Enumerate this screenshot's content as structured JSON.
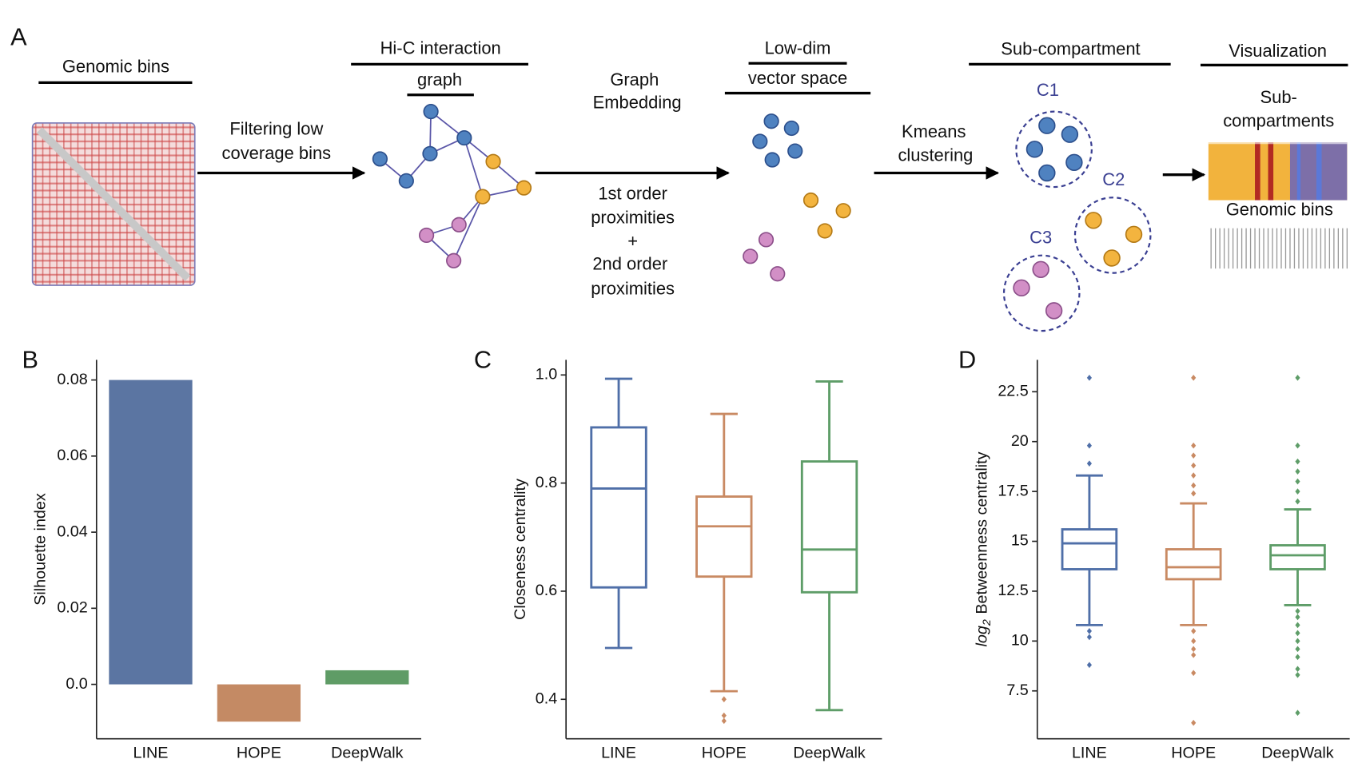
{
  "figure": {
    "panel_label": "A",
    "genomic_bins_title": "Genomic bins",
    "filter_label": [
      "Filtering low",
      "coverage bins"
    ],
    "hic_title": [
      "Hi-C interaction",
      "graph"
    ],
    "embedding_label": [
      "Graph",
      "Embedding"
    ],
    "proximities_label": [
      "1st order",
      "proximities",
      "+",
      "2nd order",
      "proximities"
    ],
    "lowdim_title": [
      "Low-dim",
      "vector space"
    ],
    "kmeans_label": [
      "Kmeans",
      "clustering"
    ],
    "subcompartment_title": "Sub-compartment",
    "clusters": [
      "C1",
      "C2",
      "C3"
    ],
    "visualization_title": "Visualization",
    "visualization_label": [
      "Sub-",
      "compartments"
    ],
    "visualization_bins": "Genomic bins"
  },
  "chart_data": [
    {
      "type": "bar",
      "panel_label": "B",
      "ylabel": "Silhouette index",
      "categories": [
        "LINE",
        "HOPE",
        "DeepWalk"
      ],
      "values": [
        0.08,
        -0.0098,
        0.0037
      ],
      "colors": [
        "#5b75a2",
        "#c48a64",
        "#5f9c66"
      ],
      "ylim": [
        -0.0143,
        0.0853
      ],
      "yticks": [
        {
          "value": 0,
          "label": "0.0"
        },
        0.02,
        0.04,
        0.06,
        0.08
      ]
    },
    {
      "type": "box",
      "panel_label": "C",
      "ylabel": "Closeness centrality",
      "categories": [
        "LINE",
        "HOPE",
        "DeepWalk"
      ],
      "colors": [
        "#4f6fa8",
        "#c98a63",
        "#5e9d68"
      ],
      "ylim": [
        0.327,
        1.028
      ],
      "yticks": [
        0.4,
        0.6,
        0.8,
        {
          "value": 1,
          "label": "1.0"
        }
      ],
      "boxes": [
        {
          "whislo": 0.495,
          "q1": 0.607,
          "med": 0.79,
          "q3": 0.903,
          "whishi": 0.993,
          "fliers": []
        },
        {
          "whislo": 0.415,
          "q1": 0.627,
          "med": 0.72,
          "q3": 0.775,
          "whishi": 0.928,
          "fliers": [
            0.4,
            0.37,
            0.36
          ]
        },
        {
          "whislo": 0.38,
          "q1": 0.598,
          "med": 0.677,
          "q3": 0.84,
          "whishi": 0.988,
          "fliers": []
        }
      ]
    },
    {
      "type": "box",
      "panel_label": "D",
      "ylabel_prefix": "log",
      "ylabel_sub": "2",
      "ylabel": "Betweenness centrality",
      "categories": [
        "LINE",
        "HOPE",
        "DeepWalk"
      ],
      "colors": [
        "#4f6fa8",
        "#c98a63",
        "#5e9d68"
      ],
      "ylim": [
        5.1,
        24.1
      ],
      "yticks": [
        7.5,
        10,
        12.5,
        15,
        17.5,
        20,
        22.5
      ],
      "boxes": [
        {
          "whislo": 10.8,
          "q1": 13.6,
          "med": 14.9,
          "q3": 15.6,
          "whishi": 18.3,
          "fliers": [
            23.2,
            19.8,
            18.9,
            10.5,
            10.2,
            8.8
          ]
        },
        {
          "whislo": 10.8,
          "q1": 13.1,
          "med": 13.7,
          "q3": 14.6,
          "whishi": 16.9,
          "fliers": [
            23.2,
            19.8,
            19.3,
            18.8,
            18.3,
            17.8,
            17.4,
            10.5,
            10.0,
            9.6,
            9.3,
            8.4,
            5.9
          ]
        },
        {
          "whislo": 11.8,
          "q1": 13.6,
          "med": 14.3,
          "q3": 14.8,
          "whishi": 16.6,
          "fliers": [
            23.2,
            19.8,
            19.0,
            18.5,
            18.0,
            17.5,
            17.0,
            11.5,
            11.2,
            10.8,
            10.4,
            10.0,
            9.6,
            9.2,
            8.6,
            8.3,
            6.4
          ]
        }
      ]
    }
  ]
}
